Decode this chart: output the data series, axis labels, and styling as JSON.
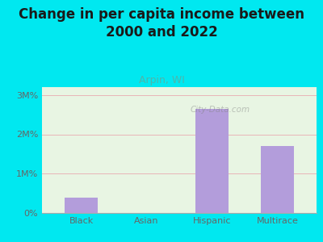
{
  "title": "Change in per capita income between\n2000 and 2022",
  "subtitle": "Arpin, WI",
  "categories": [
    "Black",
    "Asian",
    "Hispanic",
    "Multirace"
  ],
  "values": [
    400000,
    0,
    2650000,
    1700000
  ],
  "bar_color": "#b39ddb",
  "background_color": "#00e8f0",
  "plot_bg": "#e8f5e3",
  "title_color": "#1a1a1a",
  "subtitle_color": "#4db6ac",
  "ytick_labels": [
    "0%",
    "1M%",
    "2M%",
    "3M%"
  ],
  "ytick_values": [
    0,
    1000000,
    2000000,
    3000000
  ],
  "ylim": [
    0,
    3200000
  ],
  "grid_color": "#e8b4b8",
  "watermark": "City-Data.com",
  "title_fontsize": 12,
  "subtitle_fontsize": 9,
  "tick_fontsize": 8
}
